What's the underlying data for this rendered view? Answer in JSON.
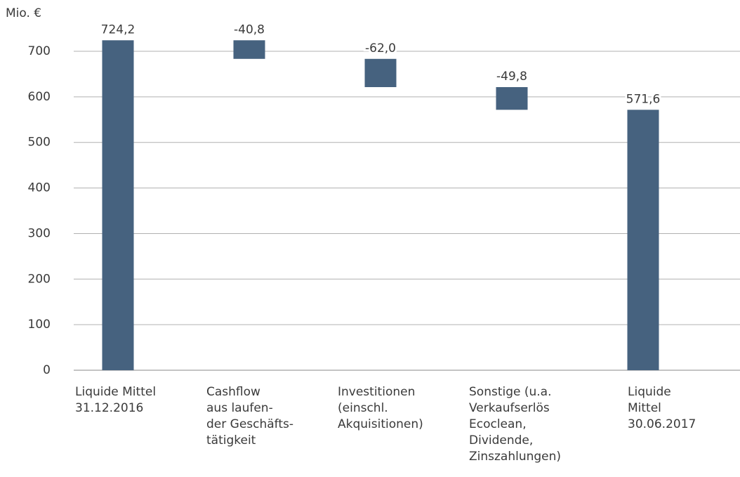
{
  "chart_data": {
    "type": "waterfall",
    "y_label": "Mio. €",
    "categories": [
      [
        "Liquide Mittel",
        "31.12.2016"
      ],
      [
        "Cashflow",
        "aus laufen-",
        "der Geschäfts-",
        "tätigkeit"
      ],
      [
        "Investitionen",
        "(einschl.",
        "Akquisitionen)"
      ],
      [
        "Sonstige (u.a.",
        "Verkaufserlös",
        "Ecoclean,",
        "Dividende,",
        "Zinszahlungen)"
      ],
      [
        "Liquide",
        "Mittel",
        "30.06.2017"
      ]
    ],
    "values": [
      724.2,
      -40.8,
      -62.0,
      -49.8,
      571.6
    ],
    "value_labels": [
      "724,2",
      "-40,8",
      "-62,0",
      "-49,8",
      "571,6"
    ],
    "color": "#46627f",
    "ylim": [
      0,
      750
    ],
    "yticks": [
      0,
      100,
      200,
      300,
      400,
      500,
      600,
      700
    ],
    "grid": true
  }
}
